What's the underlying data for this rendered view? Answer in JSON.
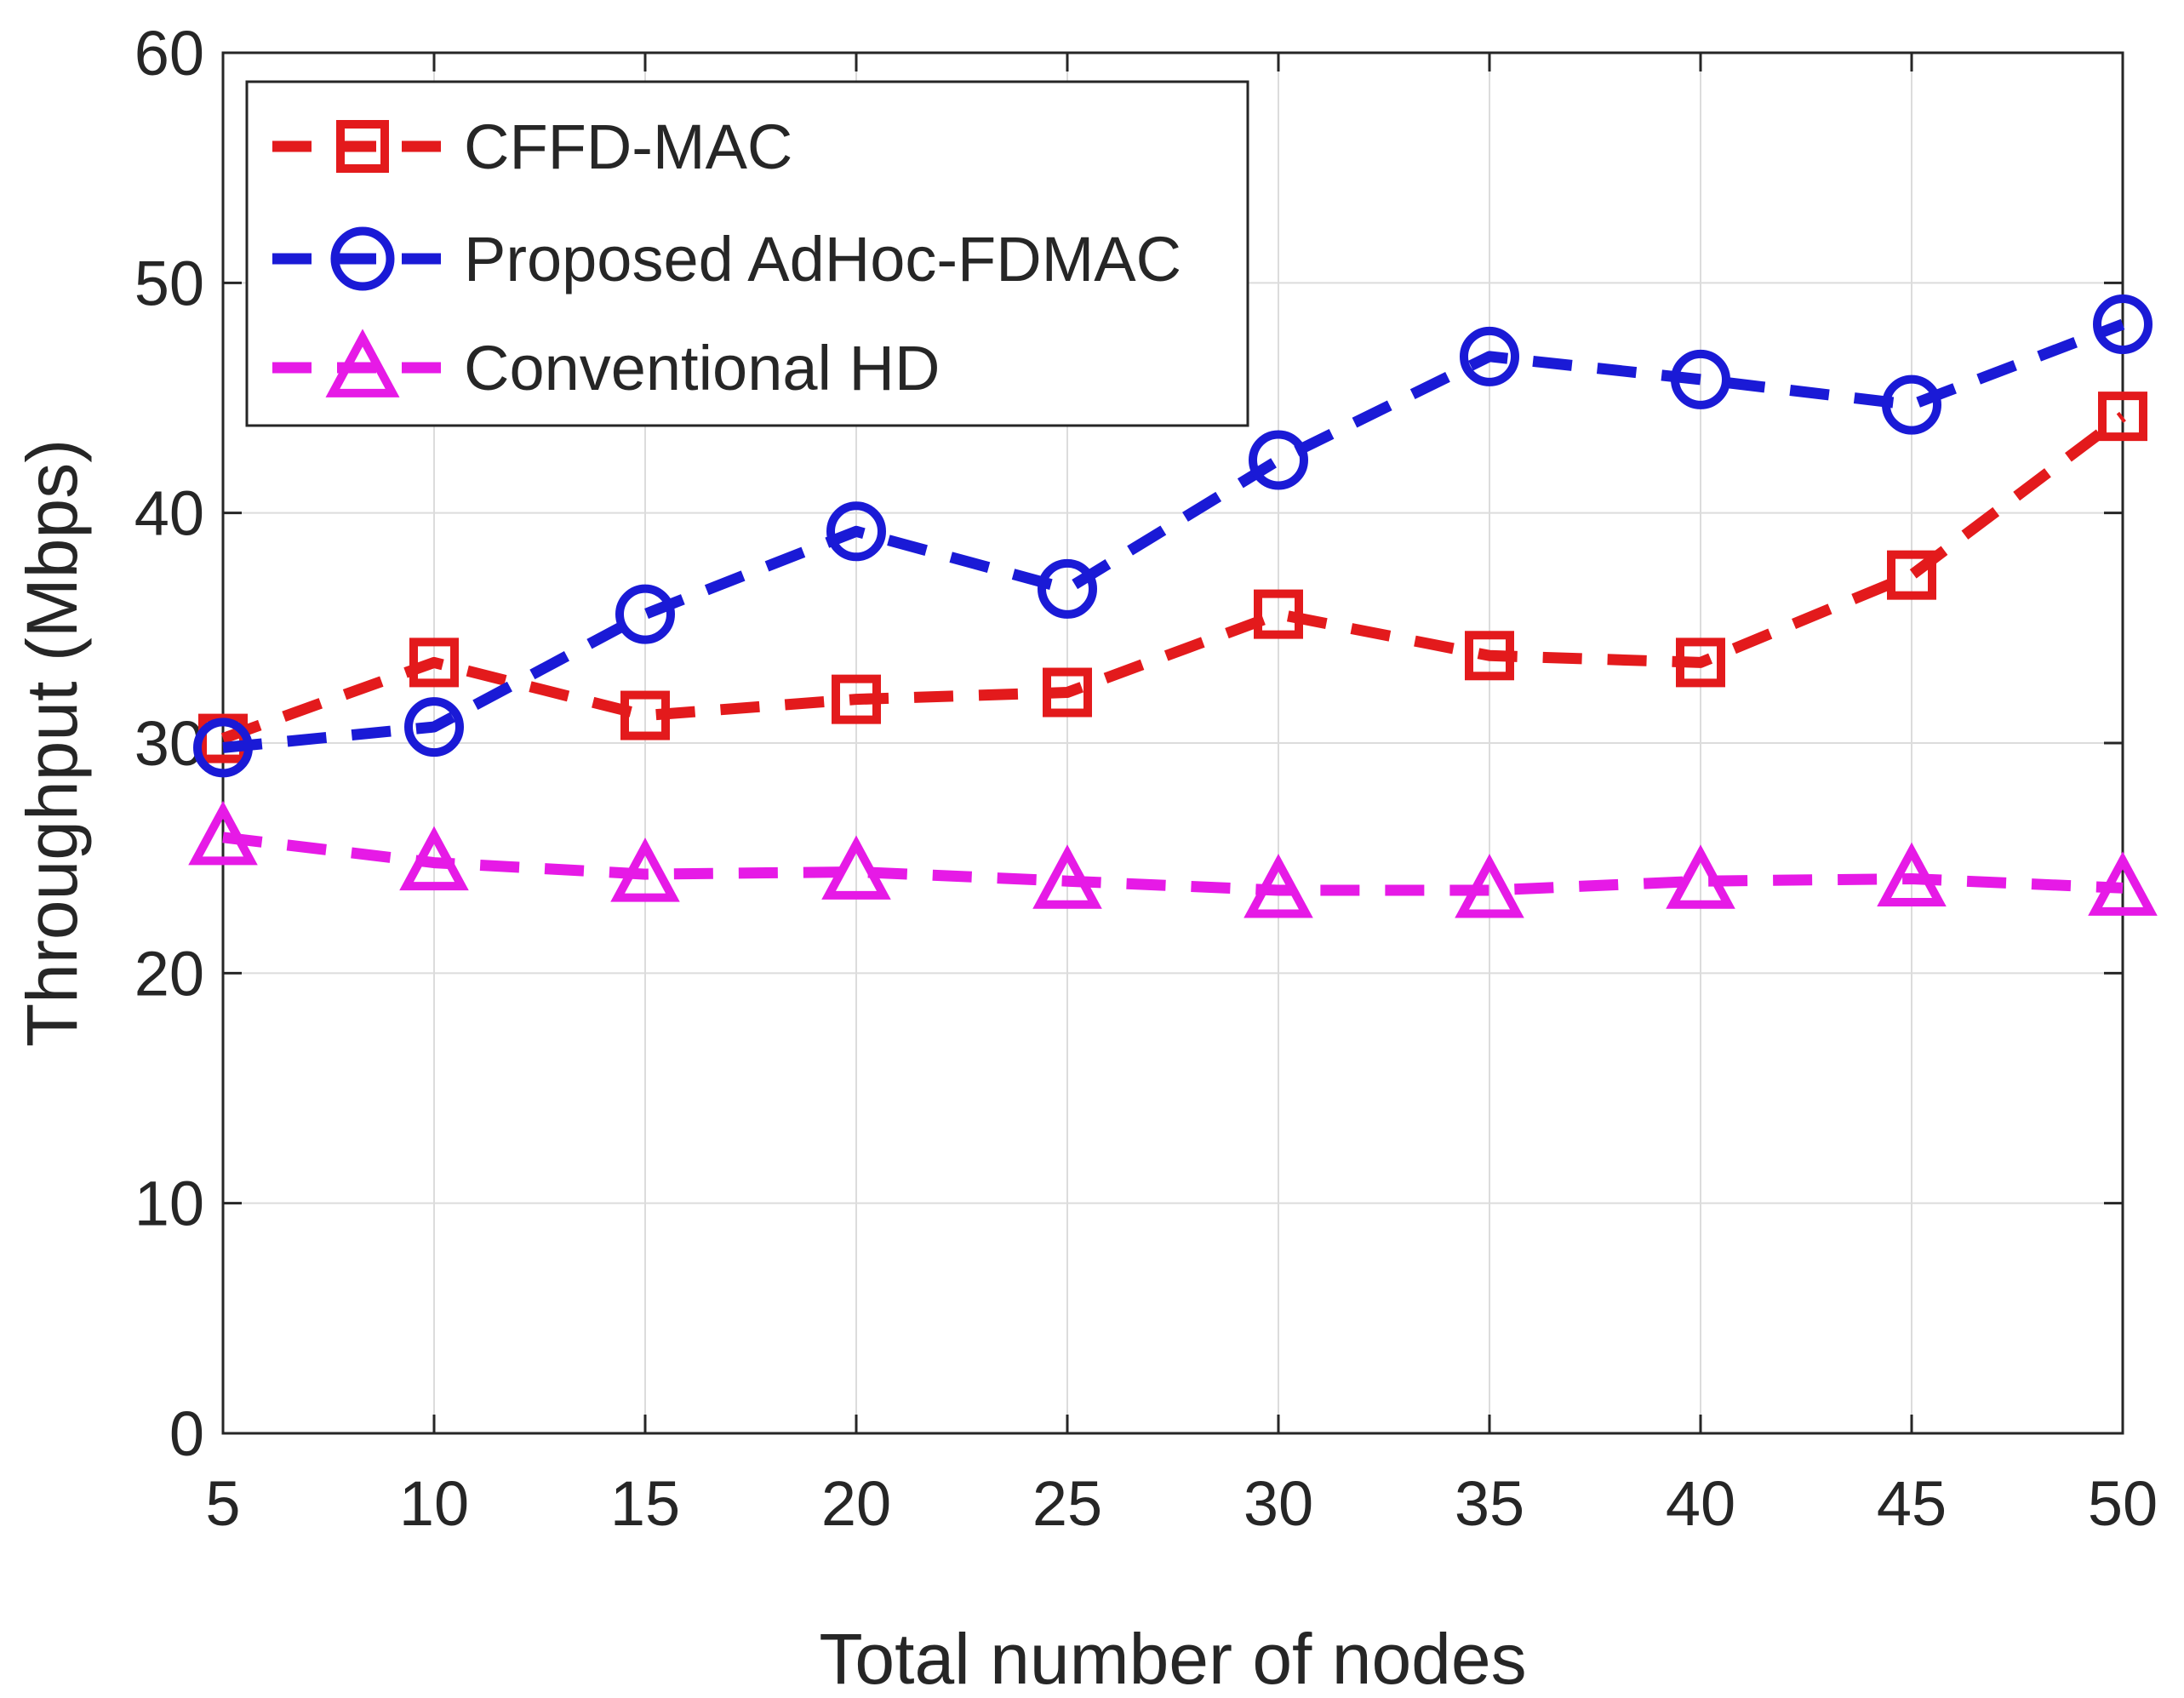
{
  "chart_data": {
    "type": "line",
    "xlabel": "Total number of nodes",
    "ylabel": "Throughput (Mbps)",
    "xlim": [
      5,
      50
    ],
    "ylim": [
      0,
      60
    ],
    "grid": true,
    "legend_position": "top-left",
    "x": [
      5,
      10,
      15,
      20,
      25,
      30,
      35,
      40,
      45,
      50
    ],
    "x_ticks": [
      "5",
      "10",
      "15",
      "20",
      "25",
      "30",
      "35",
      "40",
      "45",
      "50"
    ],
    "y_ticks": [
      "0",
      "10",
      "20",
      "30",
      "40",
      "50",
      "60"
    ],
    "series": [
      {
        "name": "CFFD-MAC",
        "color": "#e31a1c",
        "marker": "square",
        "values": [
          30.2,
          33.5,
          31.2,
          31.9,
          32.2,
          35.6,
          33.8,
          33.5,
          37.3,
          44.2
        ]
      },
      {
        "name": "Proposed AdHoc-FDMAC",
        "color": "#1a1ad6",
        "marker": "circle",
        "values": [
          29.8,
          30.7,
          35.6,
          39.2,
          36.7,
          42.3,
          46.8,
          45.8,
          44.7,
          48.2
        ]
      },
      {
        "name": "Conventional HD",
        "color": "#e61ae6",
        "marker": "triangle",
        "values": [
          25.9,
          24.8,
          24.3,
          24.4,
          24.0,
          23.6,
          23.6,
          24.0,
          24.1,
          23.7
        ]
      }
    ]
  }
}
